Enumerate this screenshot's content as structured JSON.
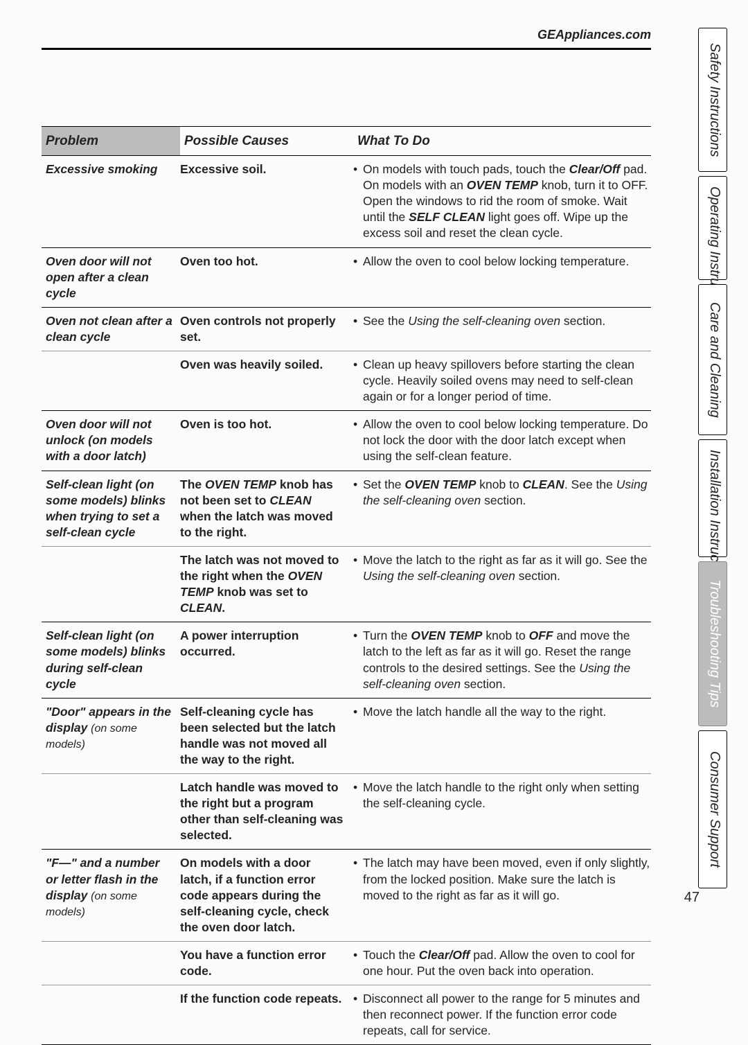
{
  "header": {
    "url": "GEAppliances.com"
  },
  "page_number": "47",
  "columns": {
    "problem": "Problem",
    "cause": "Possible Causes",
    "what": "What To Do"
  },
  "tabs": [
    {
      "label": "Safety Instructions",
      "active": false
    },
    {
      "label": "Operating Instructions",
      "active": false
    },
    {
      "label": "Care and Cleaning",
      "active": false
    },
    {
      "label": "Installation Instructions",
      "active": false
    },
    {
      "label": "Troubleshooting Tips",
      "active": true
    },
    {
      "label": "Consumer Support",
      "active": false
    }
  ],
  "rows": [
    {
      "problem": "Excessive smoking",
      "cause_html": "Excessive soil.",
      "what_html": "On models with touch pads, touch the <b><i>Clear/Off</i></b> pad. On models with an <b><i>OVEN TEMP</i></b> knob, turn it to OFF. Open the windows to rid the room of smoke. Wait until the <b><i>SELF CLEAN</i></b> light goes off. Wipe up the excess soil and reset the clean cycle."
    },
    {
      "problem": "Oven door will not open after a clean cycle",
      "cause_html": "Oven too hot.",
      "what_html": "Allow the oven to cool below locking temperature."
    },
    {
      "problem": "Oven not clean after a clean cycle",
      "cause_html": "Oven controls not properly set.",
      "what_html": "See the <i>Using the self-cleaning oven</i> section."
    },
    {
      "problem": "",
      "cause_html": "Oven was heavily soiled.",
      "what_html": "Clean up heavy spillovers before starting the clean cycle. Heavily soiled ovens may need to self-clean again or for a longer period of time."
    },
    {
      "problem": "Oven door will not unlock (on models with a door latch)",
      "cause_html": "Oven is too hot.",
      "what_html": "Allow the oven to cool below locking temperature. Do not lock the door with the door latch except when using the self-clean feature."
    },
    {
      "problem": "Self-clean light (on some models) blinks when trying to set a self-clean cycle",
      "cause_html": "The <span class=\"it\">OVEN TEMP</span> knob has not been set to <span class=\"it\">CLEAN</span> when the latch was moved to the right.",
      "what_html": "Set the <b><i>OVEN TEMP</i></b> knob to <b><i>CLEAN</i></b>. See the <i>Using the self-cleaning oven</i> section."
    },
    {
      "problem": "",
      "cause_html": "The latch was not moved to the right when the <span class=\"it\">OVEN TEMP</span> knob was set to <span class=\"it\">CLEAN</span>.",
      "what_html": "Move the latch to the right as far as it will go. See the <i>Using the self-cleaning oven</i> section."
    },
    {
      "problem": "Self-clean light (on some models) blinks during self-clean cycle",
      "cause_html": "A power interruption occurred.",
      "what_html": "Turn the <b><i>OVEN TEMP</i></b> knob to <b><i>OFF</i></b> and move the latch to the left as far as it will go. Reset the range controls to the desired settings. See the <i>Using the self-cleaning oven</i> section."
    },
    {
      "problem": "\"Door\" appears in the display",
      "problem_sub": "(on some models)",
      "cause_html": "Self-cleaning cycle has been selected but the latch handle was not moved all the way to the right.",
      "what_html": "Move the latch handle all the way to the right."
    },
    {
      "problem": "",
      "cause_html": "Latch handle was moved to the right but a program other than self-cleaning was selected.",
      "what_html": "Move the latch handle to the right only when setting the self-cleaning cycle."
    },
    {
      "problem": "\"F—\" and a number or letter flash in the display",
      "problem_sub": "(on some models)",
      "cause_html": "On models with a door latch, if a function error code appears during the self-cleaning cycle, check the oven door latch.",
      "what_html": "The latch may have been moved, even if only slightly, from the locked position. Make sure the latch is moved to the right as far as it will go."
    },
    {
      "problem": "",
      "cause_html": "You have a function error code.",
      "what_html": "Touch the <b><i>Clear/Off</i></b> pad. Allow the oven to cool for one hour. Put the oven back into operation."
    },
    {
      "problem": "",
      "cause_html": "If the function code repeats.",
      "what_html": "Disconnect all power to the range for 5 minutes and then reconnect power. If the function error code repeats, call for service."
    }
  ],
  "row_sep": [
    "hard",
    "hard",
    "hard",
    "sep",
    "hard",
    "hard",
    "sep",
    "hard",
    "hard",
    "sep",
    "hard",
    "sep",
    "sep"
  ],
  "last_row_end": true
}
